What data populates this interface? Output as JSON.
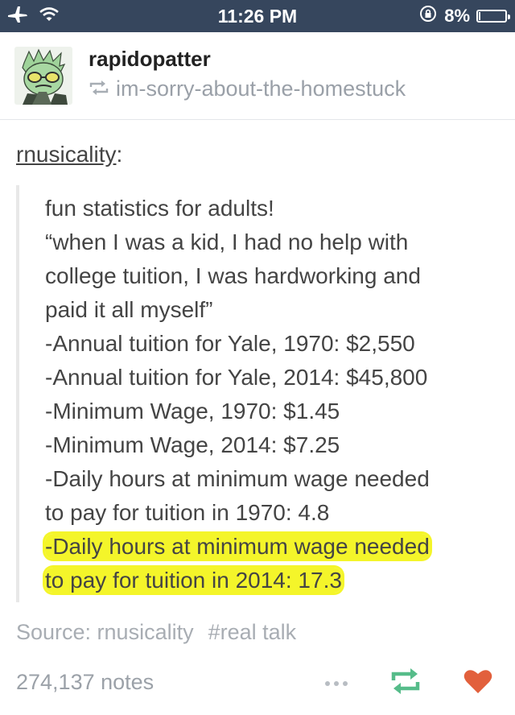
{
  "status_bar": {
    "time": "11:26 PM",
    "battery": "8%",
    "battery_level": 0.08,
    "icons": [
      "airplane-icon",
      "wifi-icon",
      "orientation-lock-icon",
      "battery-icon"
    ]
  },
  "post": {
    "blog_name": "rapidopatter",
    "reblogged_from": "im-sorry-about-the-homestuck",
    "source_user": "rnusicality",
    "source_user_suffix": ":",
    "quote_lines": [
      "fun statistics for adults!",
      "“when I was a kid, I had no help with",
      "college tuition, I was hardworking and",
      "paid it all myself”",
      "-Annual tuition for Yale, 1970: $2,550",
      "-Annual tuition for Yale, 2014: $45,800",
      "-Minimum Wage, 1970: $1.45",
      "-Minimum Wage, 2014: $7.25",
      "-Daily hours at minimum wage needed",
      "to pay for tuition in 1970: 4.8",
      "-Daily hours at minimum wage needed",
      "to pay for tuition in 2014: 17.3"
    ],
    "highlight_color": "#f4f52a"
  },
  "footer": {
    "source_label": "Source: rnusicality",
    "tag": "#real talk",
    "notes": "274,137 notes",
    "reblog_color": "#56bc8a",
    "like_color": "#e2603c"
  },
  "colors": {
    "status_bar_bg": "#36465d",
    "text": "#444444"
  }
}
